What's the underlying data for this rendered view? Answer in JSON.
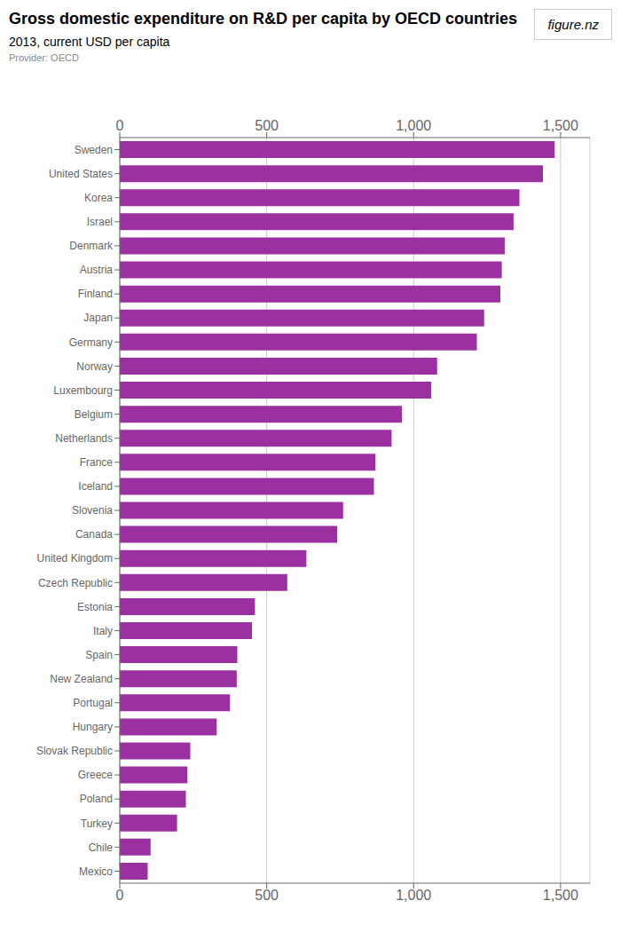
{
  "chart_data": {
    "type": "bar",
    "orientation": "horizontal",
    "title": "Gross domestic expenditure on R&D per capita by OECD countries",
    "subtitle": "2013, current USD per capita",
    "annotations": [
      "Provider: OECD",
      "figure.nz"
    ],
    "categories": [
      "Sweden",
      "United States",
      "Korea",
      "Israel",
      "Denmark",
      "Austria",
      "Finland",
      "Japan",
      "Germany",
      "Norway",
      "Luxembourg",
      "Belgium",
      "Netherlands",
      "France",
      "Iceland",
      "Slovenia",
      "Canada",
      "United Kingdom",
      "Czech Republic",
      "Estonia",
      "Italy",
      "Spain",
      "New Zealand",
      "Portugal",
      "Hungary",
      "Slovak Republic",
      "Greece",
      "Poland",
      "Turkey",
      "Chile",
      "Mexico"
    ],
    "values": [
      1480,
      1440,
      1360,
      1340,
      1310,
      1300,
      1295,
      1240,
      1215,
      1080,
      1060,
      960,
      925,
      870,
      865,
      760,
      740,
      635,
      570,
      460,
      450,
      400,
      398,
      375,
      330,
      240,
      230,
      225,
      195,
      105,
      95
    ],
    "color": "#9b30a0",
    "xlim": [
      0,
      1600
    ],
    "xticks": [
      0,
      500,
      {
        "value": 1000,
        "label": "1,000"
      },
      {
        "value": 1500,
        "label": "1,500"
      }
    ],
    "grid": true
  }
}
